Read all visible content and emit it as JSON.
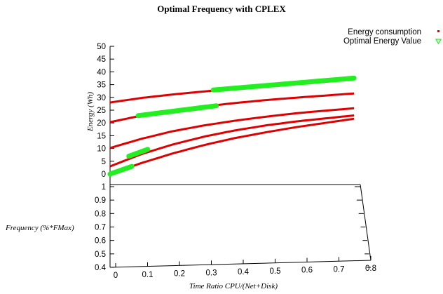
{
  "chart_data": {
    "type": "scatter",
    "title": "Optimal Frequency with CPLEX",
    "xlabel": "Time Ratio CPU/(Net+Disk)",
    "ylabel": "Frequency (%*FMax)",
    "zlabel": "Energy (Wh)",
    "xlim": [
      0,
      0.8
    ],
    "ylim": [
      0.4,
      1
    ],
    "zlim": [
      0,
      50
    ],
    "x_ticks": [
      "0",
      "0.1",
      "0.2",
      "0.3",
      "0.4",
      "0.5",
      "0.6",
      "0.7",
      "0.8"
    ],
    "y_ticks": [
      "0.4",
      "0.5",
      "0.6",
      "0.7",
      "0.8",
      "0.9",
      "1"
    ],
    "z_ticks": [
      "0",
      "5",
      "10",
      "15",
      "20",
      "25",
      "30",
      "35",
      "40",
      "45",
      "50"
    ],
    "legend_position": "top-right",
    "series": [
      {
        "name": "Energy consumption",
        "color": "#dd0000",
        "marker": "square",
        "curves": [
          {
            "x": [
              0,
              0.1,
              0.2,
              0.3,
              0.4,
              0.5,
              0.6,
              0.7,
              0.78
            ],
            "z": [
              28,
              29.5,
              30.6,
              31.5,
              32.4,
              33.2,
              34,
              34.8,
              35.4
            ]
          },
          {
            "x": [
              0,
              0.1,
              0.2,
              0.3,
              0.4,
              0.5,
              0.6,
              0.7,
              0.78
            ],
            "z": [
              20.3,
              22.6,
              24.3,
              25.6,
              26.7,
              27.6,
              28.3,
              28.9,
              29.4
            ]
          },
          {
            "x": [
              0,
              0.1,
              0.2,
              0.3,
              0.4,
              0.5,
              0.6,
              0.7,
              0.78
            ],
            "z": [
              10.2,
              13.5,
              16.2,
              18.2,
              19.8,
              21.1,
              22.2,
              23,
              23.6
            ]
          },
          {
            "x": [
              0,
              0.1,
              0.2,
              0.3,
              0.4,
              0.5,
              0.6,
              0.7,
              0.78
            ],
            "z": [
              3,
              7.5,
              11,
              13.8,
              16,
              17.7,
              19,
              20,
              20.8
            ]
          },
          {
            "x": [
              0,
              0.1,
              0.2,
              0.3,
              0.4,
              0.5,
              0.6,
              0.7,
              0.78
            ],
            "z": [
              0,
              4,
              7.5,
              10.5,
              13,
              15,
              16.8,
              18.3,
              19.5
            ]
          }
        ]
      },
      {
        "name": "Optimal Energy Value",
        "color": "#22ee22",
        "marker": "triangle-down",
        "segments": [
          {
            "x": [
              0.33,
              0.78
            ],
            "z": [
              32,
              35.4
            ]
          },
          {
            "x": [
              0.09,
              0.34
            ],
            "z": [
              22.6,
              25.8
            ]
          },
          {
            "x": [
              0.06,
              0.12
            ],
            "z": [
              6.8,
              9.3
            ]
          },
          {
            "x": [
              0,
              0.07
            ],
            "z": [
              0,
              2.8
            ]
          }
        ]
      }
    ]
  }
}
